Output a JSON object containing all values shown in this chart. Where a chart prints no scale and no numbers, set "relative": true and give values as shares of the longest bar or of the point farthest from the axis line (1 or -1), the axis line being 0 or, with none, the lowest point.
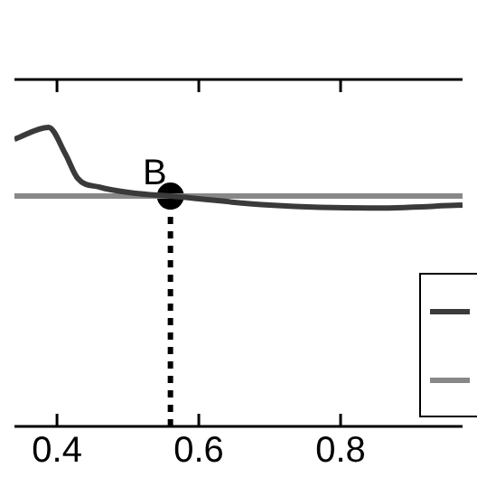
{
  "chart_data": {
    "type": "line",
    "relative": true,
    "xlim": [
      0.34,
      0.972
    ],
    "xticks": [
      0.4,
      0.6,
      0.8
    ],
    "series": [
      {
        "color": "#3a3a3a",
        "x": [
          0.34,
          0.388,
          0.412,
          0.429,
          0.46,
          0.508,
          0.56,
          0.7,
          0.843,
          0.972
        ],
        "values": [
          0.96,
          1,
          0.91,
          0.83,
          0.8,
          0.78,
          0.77,
          0.74,
          0.73,
          0.74
        ]
      },
      {
        "color": "#888888",
        "x": [
          0.34,
          0.972
        ],
        "values": [
          0.77,
          0.77
        ]
      },
      {
        "type": "scatter",
        "color": "#000000",
        "x": [
          0.56
        ],
        "values": [
          0.77
        ]
      }
    ],
    "ref_lines": [
      {
        "axis": "x",
        "value": 0.56,
        "color": "#000000",
        "line_style": "dotted"
      }
    ],
    "annotations": [
      {
        "text": "B",
        "x": 0.56,
        "y": 0.77
      }
    ],
    "line_style": "solid",
    "grid": false
  }
}
